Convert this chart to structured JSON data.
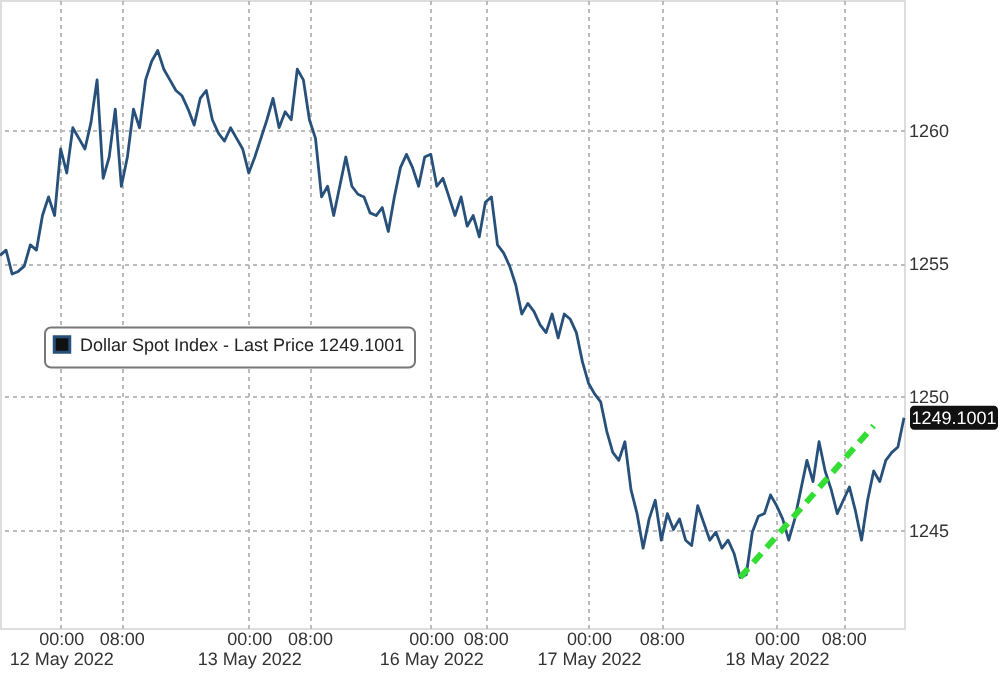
{
  "chart_data": {
    "type": "line",
    "categories": [
      null,
      null,
      null,
      null,
      null,
      null,
      null,
      null,
      null,
      null,
      "00:00\n12 May 2022",
      null,
      null,
      null,
      null,
      null,
      null,
      null,
      null,
      null,
      "08:00",
      null,
      null,
      null,
      null,
      null,
      null,
      null,
      null,
      null,
      null,
      null,
      null,
      null,
      null,
      null,
      null,
      null,
      null,
      null,
      null,
      "00:00\n13 May 2022",
      null,
      null,
      null,
      null,
      null,
      null,
      null,
      null,
      null,
      "08:00",
      null,
      null,
      null,
      null,
      null,
      null,
      null,
      null,
      null,
      null,
      null,
      null,
      null,
      null,
      null,
      null,
      null,
      null,
      null,
      "00:00\n16 May 2022",
      null,
      null,
      null,
      null,
      null,
      null,
      null,
      null,
      "08:00",
      null,
      null,
      null,
      null,
      null,
      null,
      null,
      null,
      null,
      null,
      null,
      null,
      null,
      null,
      null,
      null,
      "00:00\n17 May 2022",
      null,
      null,
      null,
      null,
      null,
      null,
      null,
      null,
      null,
      null,
      null,
      "08:00",
      null,
      null,
      null,
      null,
      null,
      null,
      null,
      null,
      null,
      null,
      null,
      null,
      null,
      null,
      null,
      null,
      null,
      null,
      "00:00\n18 May 2022",
      null,
      null,
      null,
      null,
      null,
      null,
      null,
      null,
      null,
      null,
      "08:00",
      null,
      null,
      null,
      null,
      null,
      null,
      null,
      null,
      null,
      null
    ],
    "series": [
      {
        "name": "Dollar Spot Index - Last Price 1249.1001",
        "color": "#27507a",
        "values": [
          1255.3,
          1255.5,
          1254.6,
          1254.7,
          1254.9,
          1255.7,
          1255.5,
          1256.8,
          1257.5,
          1256.8,
          1259.3,
          1258.4,
          1260.1,
          1259.7,
          1259.3,
          1260.3,
          1261.9,
          1258.2,
          1259.0,
          1260.8,
          1257.9,
          1259.0,
          1260.8,
          1260.1,
          1261.9,
          1262.6,
          1263.0,
          1262.3,
          1261.9,
          1261.5,
          1261.3,
          1260.8,
          1260.2,
          1261.2,
          1261.5,
          1260.4,
          1259.9,
          1259.6,
          1260.1,
          1259.7,
          1259.3,
          1258.4,
          1259.0,
          1259.7,
          1260.4,
          1261.2,
          1260.1,
          1260.7,
          1260.4,
          1262.3,
          1261.9,
          1260.4,
          1259.7,
          1257.5,
          1257.9,
          1256.8,
          1257.9,
          1259.0,
          1257.9,
          1257.6,
          1257.5,
          1256.9,
          1256.8,
          1257.1,
          1256.2,
          1257.5,
          1258.6,
          1259.1,
          1258.6,
          1257.9,
          1259.0,
          1259.1,
          1257.9,
          1258.2,
          1257.5,
          1256.8,
          1257.5,
          1256.4,
          1256.8,
          1256.0,
          1257.3,
          1257.5,
          1255.7,
          1255.4,
          1254.9,
          1254.2,
          1253.1,
          1253.5,
          1253.2,
          1252.7,
          1252.4,
          1253.1,
          1252.2,
          1253.1,
          1252.9,
          1252.4,
          1251.3,
          1250.5,
          1250.1,
          1249.8,
          1248.7,
          1247.9,
          1247.6,
          1248.3,
          1246.5,
          1245.6,
          1244.3,
          1245.4,
          1246.1,
          1244.6,
          1245.6,
          1245.0,
          1245.4,
          1244.6,
          1244.4,
          1245.9,
          null,
          1244.6,
          1244.9,
          1244.3,
          1244.6,
          1244.1,
          1243.2,
          1243.3,
          1244.9,
          1245.5,
          1245.6,
          1246.3,
          1245.9,
          1245.4,
          1244.6,
          1245.4,
          1246.5,
          1247.6,
          1246.8,
          1248.3,
          1247.2,
          1246.5,
          1245.6,
          1246.1,
          1246.6,
          1245.7,
          1244.6,
          1246.1,
          1247.2,
          1246.8,
          1247.6,
          1247.9,
          1248.1,
          1249.2
        ]
      },
      {
        "type": "line",
        "color": "#33dd33",
        "line_style": "dashed",
        "values": [
          null,
          null,
          null,
          null,
          null,
          null,
          null,
          null,
          null,
          null,
          null,
          null,
          null,
          null,
          null,
          null,
          null,
          null,
          null,
          null,
          null,
          null,
          null,
          null,
          null,
          null,
          null,
          null,
          null,
          null,
          null,
          null,
          null,
          null,
          null,
          null,
          null,
          null,
          null,
          null,
          null,
          null,
          null,
          null,
          null,
          null,
          null,
          null,
          null,
          null,
          null,
          null,
          null,
          null,
          null,
          null,
          null,
          null,
          null,
          null,
          null,
          null,
          null,
          null,
          null,
          null,
          null,
          null,
          null,
          null,
          null,
          null,
          null,
          null,
          null,
          null,
          null,
          null,
          null,
          null,
          null,
          null,
          null,
          null,
          null,
          null,
          null,
          null,
          null,
          null,
          null,
          null,
          null,
          null,
          null,
          null,
          null,
          null,
          null,
          null,
          null,
          null,
          null,
          null,
          null,
          null,
          null,
          null,
          null,
          null,
          null,
          null,
          null,
          null,
          null,
          null,
          null,
          null,
          null,
          null,
          null,
          null,
          1243.2,
          null,
          null,
          null,
          null,
          null,
          null,
          null,
          null,
          null,
          null,
          null,
          null,
          null,
          null,
          null,
          null,
          null,
          null,
          null,
          null,
          null,
          1248.9,
          null,
          null,
          null,
          null,
          null
        ]
      }
    ],
    "ylim": [
      1241.3,
      1264.9
    ],
    "yticks": [
      1245,
      1250,
      1255,
      1260
    ],
    "grid": true,
    "legend": "left",
    "annotations": [
      "1249.1001"
    ]
  }
}
